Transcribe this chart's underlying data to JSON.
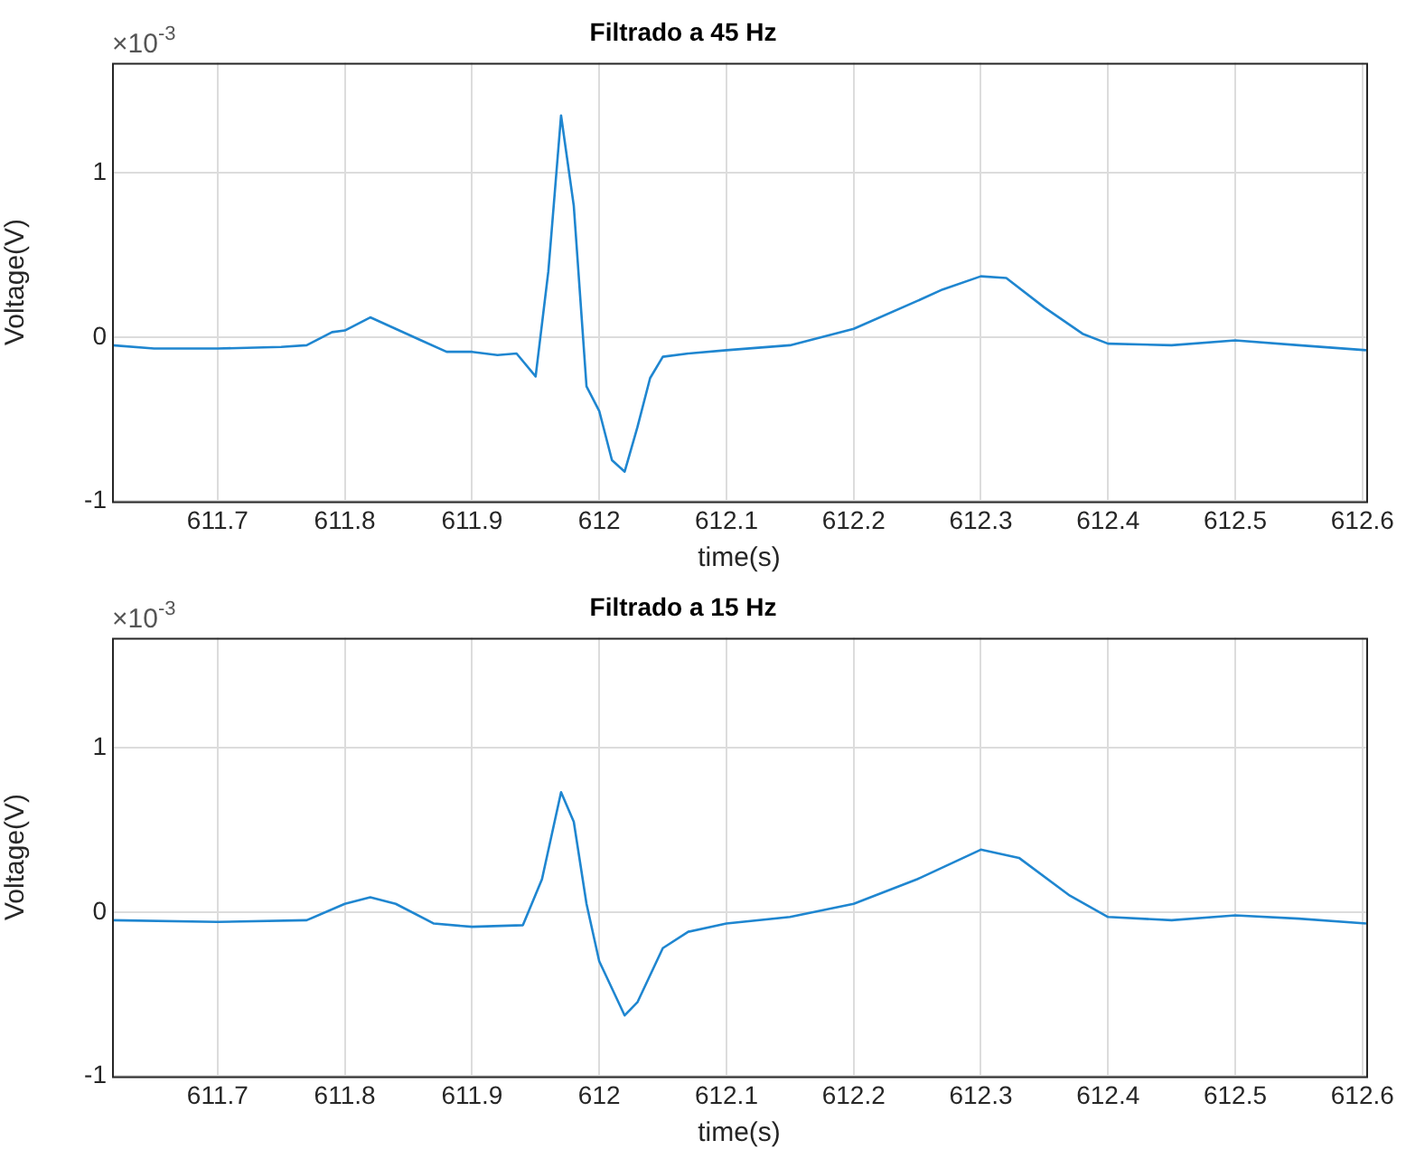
{
  "chart_data": [
    {
      "type": "line",
      "title": "Filtrado a 45 Hz",
      "xlabel": "time(s)",
      "ylabel": "Voltage(V)",
      "annotations": [
        "×10$^{-3}$"
      ],
      "xlim": [
        611.617,
        612.603
      ],
      "xticks": [
        611.7,
        611.8,
        611.9,
        612,
        612.1,
        612.2,
        612.3,
        612.4,
        612.5,
        612.6
      ],
      "ylim": [
        -1,
        1.67
      ],
      "yticks": [
        -1,
        0,
        1
      ],
      "grid": true,
      "legend": false,
      "marker": "none",
      "line_style": "solid",
      "series": [
        {
          "color": "#1f86d0",
          "x": [
            611.617,
            611.65,
            611.7,
            611.75,
            611.77,
            611.79,
            611.8,
            611.82,
            611.84,
            611.86,
            611.88,
            611.9,
            611.92,
            611.935,
            611.95,
            611.96,
            611.97,
            611.98,
            611.99,
            612.0,
            612.01,
            612.02,
            612.03,
            612.04,
            612.05,
            612.07,
            612.1,
            612.15,
            612.2,
            612.25,
            612.27,
            612.3,
            612.32,
            612.35,
            612.38,
            612.4,
            612.45,
            612.5,
            612.55,
            612.603
          ],
          "values": [
            -0.05,
            -0.07,
            -0.07,
            -0.06,
            -0.05,
            0.03,
            0.04,
            0.12,
            0.05,
            -0.02,
            -0.09,
            -0.09,
            -0.11,
            -0.1,
            -0.24,
            0.4,
            1.35,
            0.8,
            -0.3,
            -0.45,
            -0.75,
            -0.82,
            -0.55,
            -0.25,
            -0.12,
            -0.1,
            -0.08,
            -0.05,
            0.05,
            0.22,
            0.29,
            0.37,
            0.36,
            0.18,
            0.02,
            -0.04,
            -0.05,
            -0.02,
            -0.05,
            -0.08
          ]
        }
      ]
    },
    {
      "type": "line",
      "title": "Filtrado a 15 Hz",
      "xlabel": "time(s)",
      "ylabel": "Voltage(V)",
      "annotations": [
        "×10$^{-3}$"
      ],
      "xlim": [
        611.617,
        612.603
      ],
      "xticks": [
        611.7,
        611.8,
        611.9,
        612,
        612.1,
        612.2,
        612.3,
        612.4,
        612.5,
        612.6
      ],
      "ylim": [
        -1,
        1.67
      ],
      "yticks": [
        -1,
        0,
        1
      ],
      "grid": true,
      "legend": false,
      "marker": "none",
      "line_style": "solid",
      "series": [
        {
          "color": "#1f86d0",
          "x": [
            611.617,
            611.7,
            611.77,
            611.8,
            611.82,
            611.84,
            611.87,
            611.9,
            611.94,
            611.955,
            611.97,
            611.98,
            611.99,
            612.0,
            612.02,
            612.03,
            612.05,
            612.07,
            612.1,
            612.15,
            612.2,
            612.25,
            612.3,
            612.33,
            612.37,
            612.4,
            612.45,
            612.5,
            612.55,
            612.603
          ],
          "values": [
            -0.05,
            -0.06,
            -0.05,
            0.05,
            0.09,
            0.05,
            -0.07,
            -0.09,
            -0.08,
            0.2,
            0.73,
            0.55,
            0.05,
            -0.3,
            -0.63,
            -0.55,
            -0.22,
            -0.12,
            -0.07,
            -0.03,
            0.05,
            0.2,
            0.38,
            0.33,
            0.1,
            -0.03,
            -0.05,
            -0.02,
            -0.04,
            -0.07
          ]
        }
      ]
    }
  ]
}
